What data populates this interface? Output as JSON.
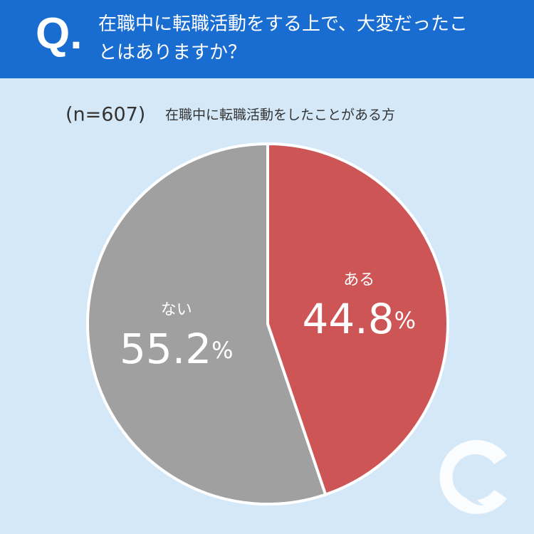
{
  "chart_data": {
    "type": "pie",
    "title_mark": "Q.",
    "title": "在職中に転職活動をする上で、大変だったことはありますか？",
    "sample": "(n=607)",
    "subtitle": "在職中に転職活動をしたことがある方",
    "categories": [
      "ある",
      "ない"
    ],
    "values": [
      44.8,
      55.2
    ],
    "value_labels": [
      "44.8%",
      "55.2%"
    ],
    "colors": [
      "#cd5555",
      "#a0a0a0"
    ]
  }
}
